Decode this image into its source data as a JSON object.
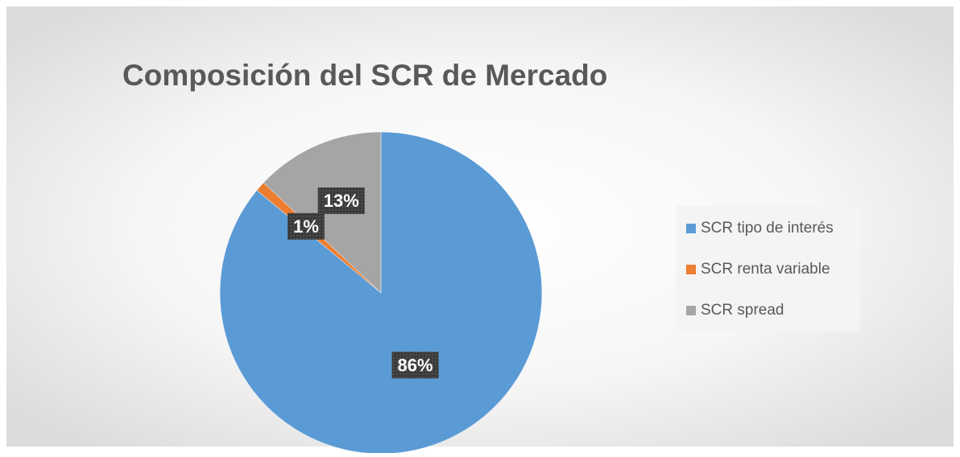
{
  "chart_data": {
    "type": "pie",
    "title": "Composición del SCR de Mercado",
    "categories": [
      "SCR tipo de interés",
      "SCR renta variable",
      "SCR spread"
    ],
    "values": [
      86,
      1,
      13
    ],
    "value_labels": [
      "86%",
      "1%",
      "13%"
    ],
    "colors": [
      "#5b9bd5",
      "#ed7d31",
      "#a5a5a5"
    ],
    "legend": "right"
  }
}
